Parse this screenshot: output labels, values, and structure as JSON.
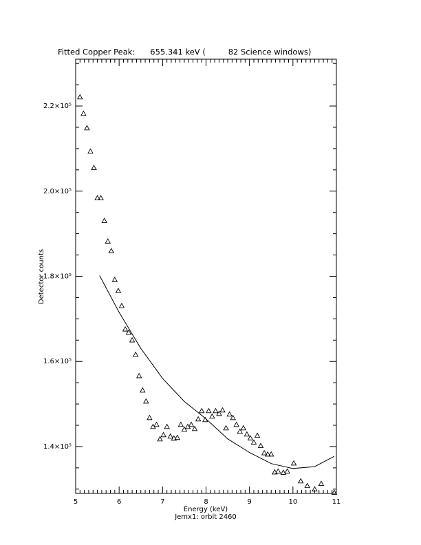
{
  "chart_data": {
    "type": "scatter",
    "title": "Fitted Copper Peak:      655.341 keV (         82 Science windows)",
    "x_label": "Energy (keV)",
    "subtitle": "Jemx1: orbit 2460",
    "y_label": "Detector counts",
    "xlim": [
      5,
      11
    ],
    "xticks": [
      5,
      6,
      7,
      8,
      9,
      10,
      11
    ],
    "ylim": [
      129000,
      231000
    ],
    "yticks": [
      {
        "value": 140000,
        "label": "1.4×10⁵"
      },
      {
        "value": 160000,
        "label": "1.6×10⁵"
      },
      {
        "value": 180000,
        "label": "1.8×10⁵"
      },
      {
        "value": 200000,
        "label": "2.0×10⁵"
      },
      {
        "value": 220000,
        "label": "2.2×10⁵"
      }
    ],
    "series": [
      {
        "color": "#000000",
        "marker": "triangle",
        "x": [
          5.1,
          5.18,
          5.26,
          5.34,
          5.42,
          5.5,
          5.58,
          5.66,
          5.74,
          5.82,
          5.9,
          5.98,
          6.06,
          6.14,
          6.22,
          6.3,
          6.38,
          6.46,
          6.54,
          6.62,
          6.7,
          6.78,
          6.86,
          6.94,
          7.02,
          7.1,
          7.18,
          7.26,
          7.34,
          7.42,
          7.5,
          7.58,
          7.66,
          7.74,
          7.82,
          7.9,
          7.98,
          8.06,
          8.14,
          8.22,
          8.3,
          8.38,
          8.46,
          8.54,
          8.62,
          8.7,
          8.78,
          8.86,
          8.94,
          9.02,
          9.1,
          9.18,
          9.26,
          9.34,
          9.42,
          9.5,
          9.58,
          9.66,
          9.78,
          9.87,
          10.02,
          10.18,
          10.33,
          10.5,
          10.65,
          10.95
        ],
        "values": [
          222100,
          218230,
          214840,
          209360,
          205490,
          198390,
          198390,
          193070,
          188230,
          185970,
          179200,
          176610,
          173070,
          167580,
          166780,
          165000,
          161610,
          156610,
          153230,
          150650,
          146770,
          144680,
          145160,
          141770,
          142740,
          144680,
          142420,
          141940,
          142100,
          145160,
          144030,
          144680,
          145160,
          144190,
          146450,
          148390,
          146290,
          148390,
          147100,
          148390,
          147740,
          148550,
          144350,
          147580,
          146770,
          145160,
          143550,
          144350,
          142900,
          142000,
          141000,
          142600,
          140200,
          138500,
          138200,
          138200,
          134000,
          134200,
          133900,
          134200,
          136100,
          131900,
          130800,
          130000,
          131300,
          129200
        ]
      },
      {
        "color": "#000000",
        "line": true,
        "x": [
          5.55,
          6,
          6.5,
          7,
          7.5,
          8,
          8.5,
          9,
          9.5,
          10,
          10.5,
          10.95
        ],
        "values": [
          180160,
          171540,
          163040,
          156000,
          150600,
          146500,
          141800,
          138600,
          136000,
          134850,
          135290,
          137700
        ]
      }
    ]
  }
}
